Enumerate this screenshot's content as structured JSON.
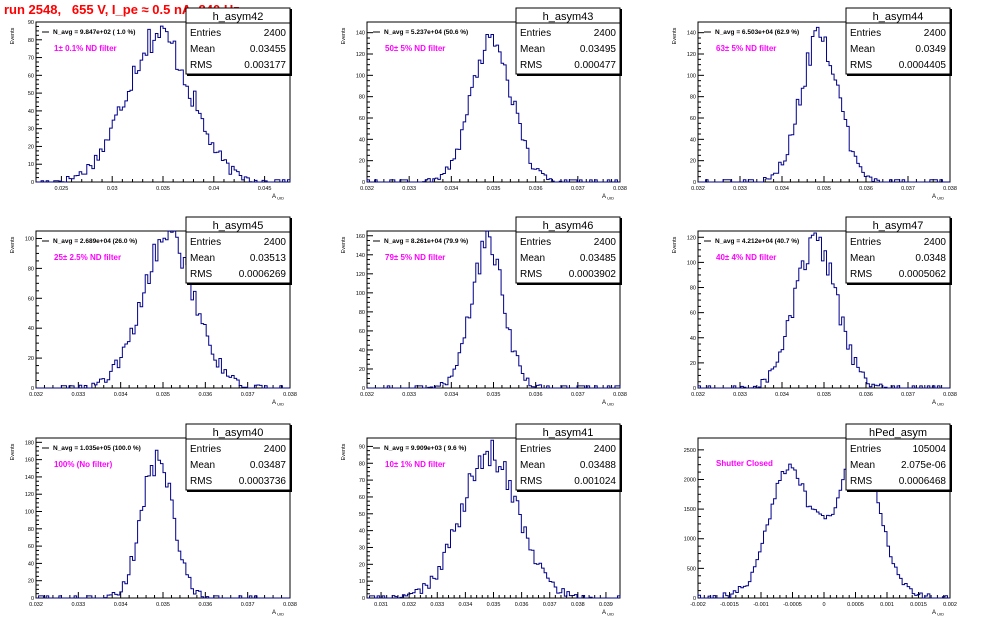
{
  "page": {
    "title": "run 2548,   655 V, I_pe ≈ 0.5 nA, 240 Hz",
    "line_color": "#00008b",
    "annotation_color": "#ff00ff",
    "title_color": "#ff0000"
  },
  "stats_labels": {
    "entries": "Entries",
    "mean": "Mean",
    "rms": "RMS"
  },
  "chart_data": [
    {
      "type": "histogram",
      "name": "h_asym42",
      "entries": "2400",
      "mean": "0.03455",
      "rms": "0.003177",
      "navg": "N_avg = 9.847e+02 ( 1.0 %)",
      "filter": "1± 0.1% ND filter",
      "xlabel": "A_UID",
      "ylabel": "Events",
      "xlim": [
        0.0225,
        0.0475
      ],
      "ylim": [
        0,
        90
      ],
      "xticks": [
        "0.025",
        "0.03",
        "0.035",
        "0.04",
        "0.045"
      ],
      "yticks": [
        "0",
        "10",
        "20",
        "30",
        "40",
        "50",
        "60",
        "70",
        "80",
        "90"
      ],
      "peak": 83,
      "center": 0.03455,
      "sigma": 0.0032
    },
    {
      "type": "histogram",
      "name": "h_asym43",
      "entries": "2400",
      "mean": "0.03495",
      "rms": "0.000477",
      "navg": "N_avg = 5.237e+04 (50.6 %)",
      "filter": "50± 5% ND filter",
      "xlabel": "A_UID",
      "ylabel": "Events",
      "xlim": [
        0.032,
        0.038
      ],
      "ylim": [
        0,
        150
      ],
      "xticks": [
        "0.032",
        "0.033",
        "0.034",
        "0.035",
        "0.036",
        "0.037",
        "0.038"
      ],
      "yticks": [
        "0",
        "20",
        "40",
        "60",
        "80",
        "100",
        "120",
        "140"
      ],
      "peak": 135,
      "center": 0.03495,
      "sigma": 0.00048
    },
    {
      "type": "histogram",
      "name": "h_asym44",
      "entries": "2400",
      "mean": "0.0349",
      "rms": "0.0004405",
      "navg": "N_avg = 6.503e+04 (62.9 %)",
      "filter": "63± 5% ND filter",
      "xlabel": "A_UID",
      "ylabel": "Events",
      "xlim": [
        0.032,
        0.038
      ],
      "ylim": [
        0,
        150
      ],
      "xticks": [
        "0.032",
        "0.033",
        "0.034",
        "0.035",
        "0.036",
        "0.037",
        "0.038"
      ],
      "yticks": [
        "0",
        "20",
        "40",
        "60",
        "80",
        "100",
        "120",
        "140"
      ],
      "peak": 140,
      "center": 0.0349,
      "sigma": 0.00044
    },
    {
      "type": "histogram",
      "name": "h_asym45",
      "entries": "2400",
      "mean": "0.03513",
      "rms": "0.0006269",
      "navg": "N_avg = 2.689e+04 (26.0 %)",
      "filter": "25± 2.5% ND filter",
      "xlabel": "A_UID",
      "ylabel": "Events",
      "xlim": [
        0.032,
        0.038
      ],
      "ylim": [
        0,
        105
      ],
      "xticks": [
        "0.032",
        "0.033",
        "0.034",
        "0.035",
        "0.036",
        "0.037",
        "0.038"
      ],
      "yticks": [
        "0",
        "20",
        "40",
        "60",
        "80",
        "100"
      ],
      "peak": 100,
      "center": 0.03513,
      "sigma": 0.00063
    },
    {
      "type": "histogram",
      "name": "h_asym46",
      "entries": "2400",
      "mean": "0.03485",
      "rms": "0.0003902",
      "navg": "N_avg = 8.261e+04 (79.9 %)",
      "filter": "79± 5% ND filter",
      "xlabel": "A_UID",
      "ylabel": "Events",
      "xlim": [
        0.032,
        0.038
      ],
      "ylim": [
        0,
        165
      ],
      "xticks": [
        "0.032",
        "0.033",
        "0.034",
        "0.035",
        "0.036",
        "0.037",
        "0.038"
      ],
      "yticks": [
        "0",
        "20",
        "40",
        "60",
        "80",
        "100",
        "120",
        "140",
        "160"
      ],
      "peak": 150,
      "center": 0.03485,
      "sigma": 0.00039
    },
    {
      "type": "histogram",
      "name": "h_asym47",
      "entries": "2400",
      "mean": "0.0348",
      "rms": "0.0005062",
      "navg": "N_avg = 4.212e+04 (40.7 %)",
      "filter": "40± 4% ND filter",
      "xlabel": "A_UID",
      "ylabel": "Events",
      "xlim": [
        0.032,
        0.038
      ],
      "ylim": [
        0,
        125
      ],
      "xticks": [
        "0.032",
        "0.033",
        "0.034",
        "0.035",
        "0.036",
        "0.037",
        "0.038"
      ],
      "yticks": [
        "0",
        "20",
        "40",
        "60",
        "80",
        "100",
        "120"
      ],
      "peak": 115,
      "center": 0.0348,
      "sigma": 0.0005
    },
    {
      "type": "histogram",
      "name": "h_asym40",
      "entries": "2400",
      "mean": "0.03487",
      "rms": "0.0003736",
      "navg": "N_avg = 1.035e+05 (100.0 %)",
      "filter": "100% (No filter)",
      "xlabel": "A_UID",
      "ylabel": "Events",
      "xlim": [
        0.032,
        0.038
      ],
      "ylim": [
        0,
        185
      ],
      "xticks": [
        "0.032",
        "0.033",
        "0.034",
        "0.035",
        "0.036",
        "0.037",
        "0.038"
      ],
      "yticks": [
        "0",
        "20",
        "40",
        "60",
        "80",
        "100",
        "120",
        "140",
        "160",
        "180"
      ],
      "peak": 160,
      "center": 0.03487,
      "sigma": 0.00037
    },
    {
      "type": "histogram",
      "name": "h_asym41",
      "entries": "2400",
      "mean": "0.03488",
      "rms": "0.001024",
      "navg": "N_avg = 9.909e+03 ( 9.6 %)",
      "filter": "10± 1% ND filter",
      "xlabel": "A_UID",
      "ylabel": "Events",
      "xlim": [
        0.0305,
        0.0395
      ],
      "ylim": [
        0,
        95
      ],
      "xticks": [
        "0.031",
        "0.032",
        "0.033",
        "0.034",
        "0.035",
        "0.036",
        "0.037",
        "0.038",
        "0.039"
      ],
      "yticks": [
        "0",
        "10",
        "20",
        "30",
        "40",
        "50",
        "60",
        "70",
        "80",
        "90"
      ],
      "peak": 85,
      "center": 0.03488,
      "sigma": 0.00102
    },
    {
      "type": "histogram",
      "name": "hPed_asym",
      "entries": "105004",
      "mean": "2.075e-06",
      "rms": "0.0006468",
      "navg": "",
      "filter": "Shutter Closed",
      "xlabel": "A_UID",
      "ylabel": "",
      "xlim": [
        -0.002,
        0.002
      ],
      "ylim": [
        0,
        2700
      ],
      "xticks": [
        "-0.002",
        "-0.0015",
        "-0.001",
        "-0.0005",
        "0",
        "0.0005",
        "0.001",
        "0.0015",
        "0.002"
      ],
      "yticks": [
        "0",
        "500",
        "1000",
        "1500",
        "2000",
        "2500"
      ],
      "bimodal": true,
      "peak": 2550,
      "dip": 1550,
      "modes": [
        -0.00055,
        0.00055
      ],
      "sigma": 0.00033
    }
  ]
}
